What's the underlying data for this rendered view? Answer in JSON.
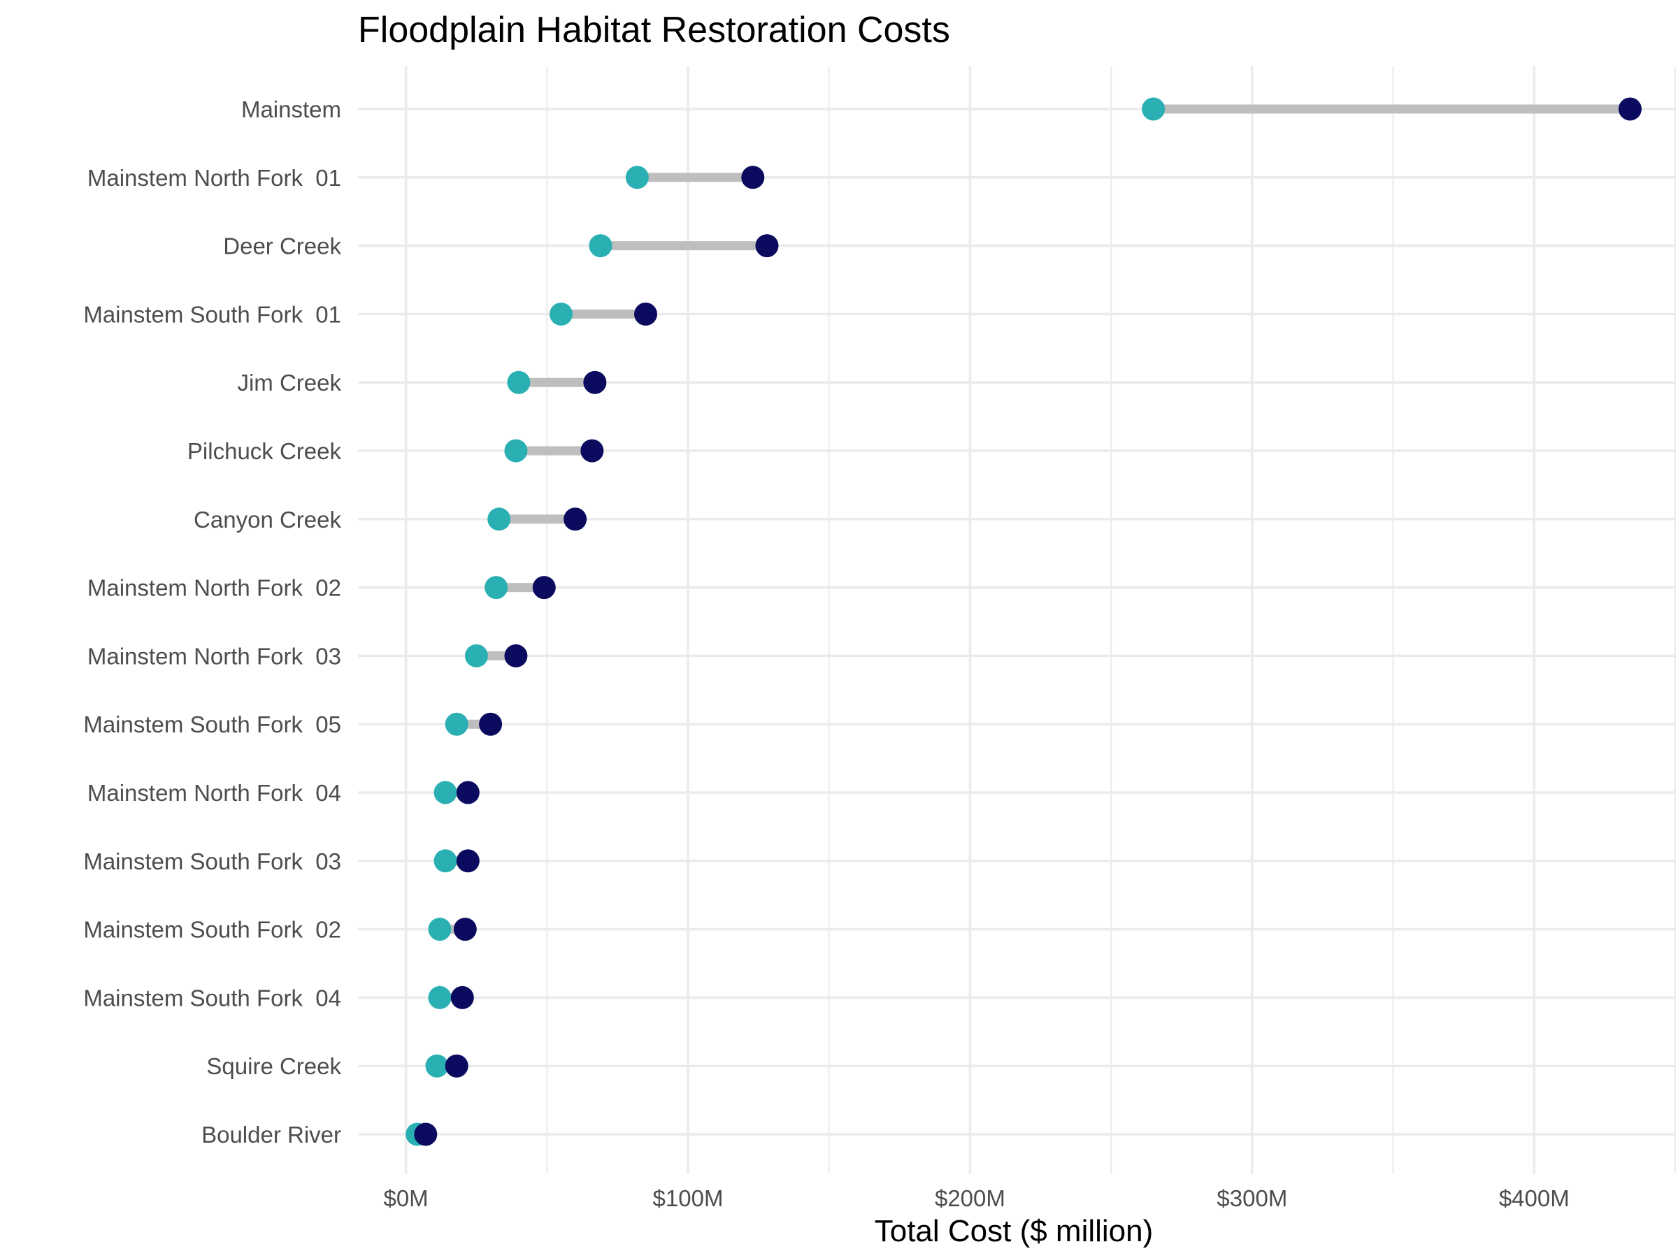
{
  "chart_data": {
    "type": "dumbbell",
    "title": "Floodplain Habitat Restoration Costs",
    "xlabel": "Total Cost ($ million)",
    "ylabel": "",
    "xlim": [
      -17,
      450
    ],
    "x_ticks": [
      0,
      100,
      200,
      300,
      400
    ],
    "x_tick_labels": [
      "$0M",
      "$100M",
      "$200M",
      "$300M",
      "$400M"
    ],
    "grid": true,
    "legend": "none",
    "colors": {
      "low": "#2ab0b3",
      "high": "#0a0a5e",
      "segment": "#bebebe",
      "grid": "#ebebeb"
    },
    "series": [
      {
        "key": "low"
      },
      {
        "key": "high"
      }
    ],
    "categories": [
      "Mainstem",
      "Mainstem North Fork  01",
      "Deer Creek",
      "Mainstem South Fork  01",
      "Jim Creek",
      "Pilchuck Creek",
      "Canyon Creek",
      "Mainstem North Fork  02",
      "Mainstem North Fork  03",
      "Mainstem South Fork  05",
      "Mainstem North Fork  04",
      "Mainstem South Fork  03",
      "Mainstem South Fork  02",
      "Mainstem South Fork  04",
      "Squire Creek",
      "Boulder River"
    ],
    "low": [
      265,
      82,
      69,
      55,
      40,
      39,
      33,
      32,
      25,
      18,
      14,
      14,
      12,
      12,
      11,
      4
    ],
    "high": [
      434,
      123,
      128,
      85,
      67,
      66,
      60,
      49,
      39,
      30,
      22,
      22,
      21,
      20,
      18,
      7
    ]
  }
}
